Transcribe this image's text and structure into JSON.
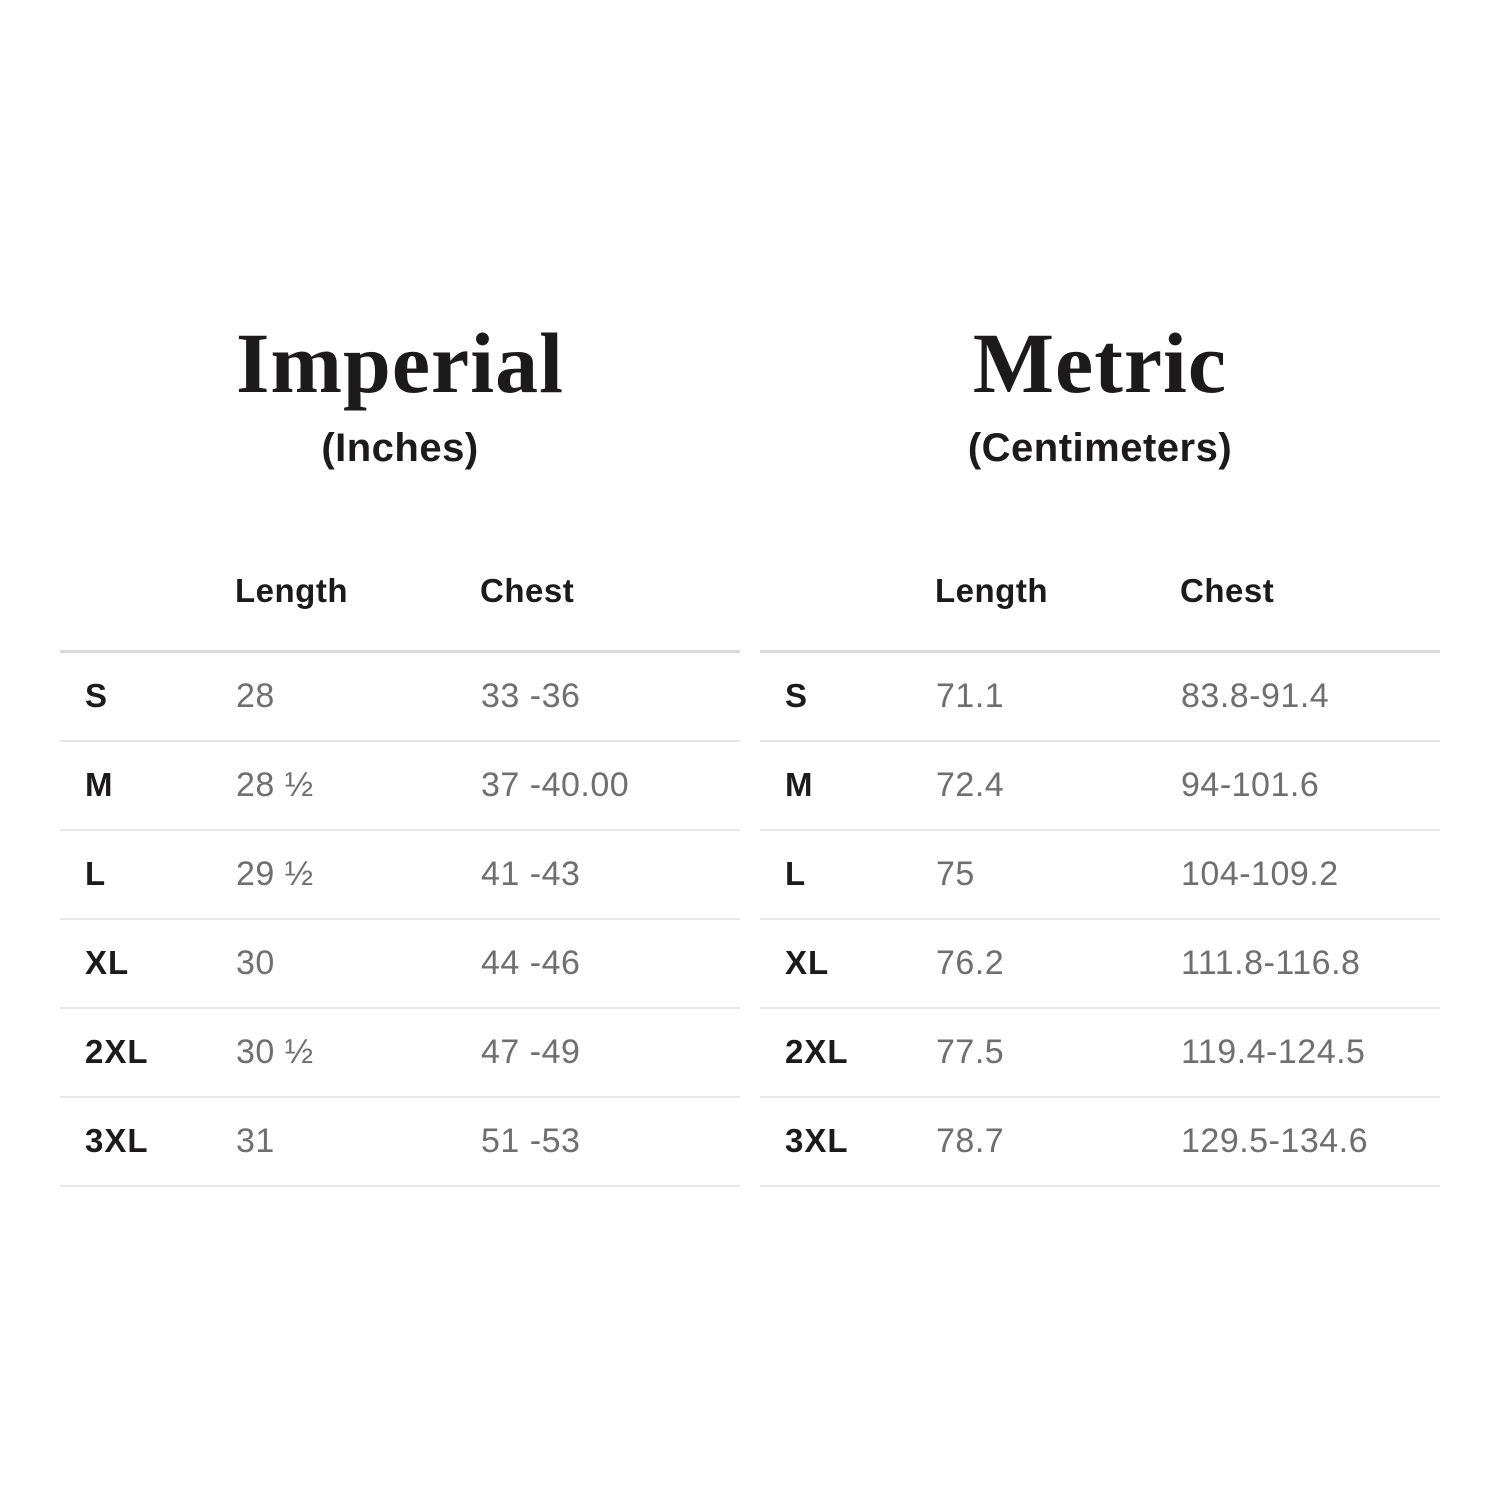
{
  "page": {
    "background": "#ffffff",
    "heading_color": "#1c1a1b",
    "value_color": "#6f6f6f",
    "divider_color": "#e8e8e8"
  },
  "chart_data": [
    {
      "type": "table",
      "title": "Imperial",
      "subtitle": "(Inches)",
      "columns": [
        "Length",
        "Chest"
      ],
      "rows": [
        {
          "size": "S",
          "length": "28",
          "chest": "33 -36"
        },
        {
          "size": "M",
          "length": "28 ½",
          "chest": "37 -40.00"
        },
        {
          "size": "L",
          "length": "29 ½",
          "chest": "41 -43"
        },
        {
          "size": "XL",
          "length": "30",
          "chest": "44 -46"
        },
        {
          "size": "2XL",
          "length": "30 ½",
          "chest": "47 -49"
        },
        {
          "size": "3XL",
          "length": "31",
          "chest": "51 -53"
        }
      ]
    },
    {
      "type": "table",
      "title": "Metric",
      "subtitle": "(Centimeters)",
      "columns": [
        "Length",
        "Chest"
      ],
      "rows": [
        {
          "size": "S",
          "length": "71.1",
          "chest": "83.8-91.4"
        },
        {
          "size": "M",
          "length": "72.4",
          "chest": "94-101.6"
        },
        {
          "size": "L",
          "length": "75",
          "chest": "104-109.2"
        },
        {
          "size": "XL",
          "length": "76.2",
          "chest": "111.8-116.8"
        },
        {
          "size": "2XL",
          "length": "77.5",
          "chest": "119.4-124.5"
        },
        {
          "size": "3XL",
          "length": "78.7",
          "chest": "129.5-134.6"
        }
      ]
    }
  ]
}
